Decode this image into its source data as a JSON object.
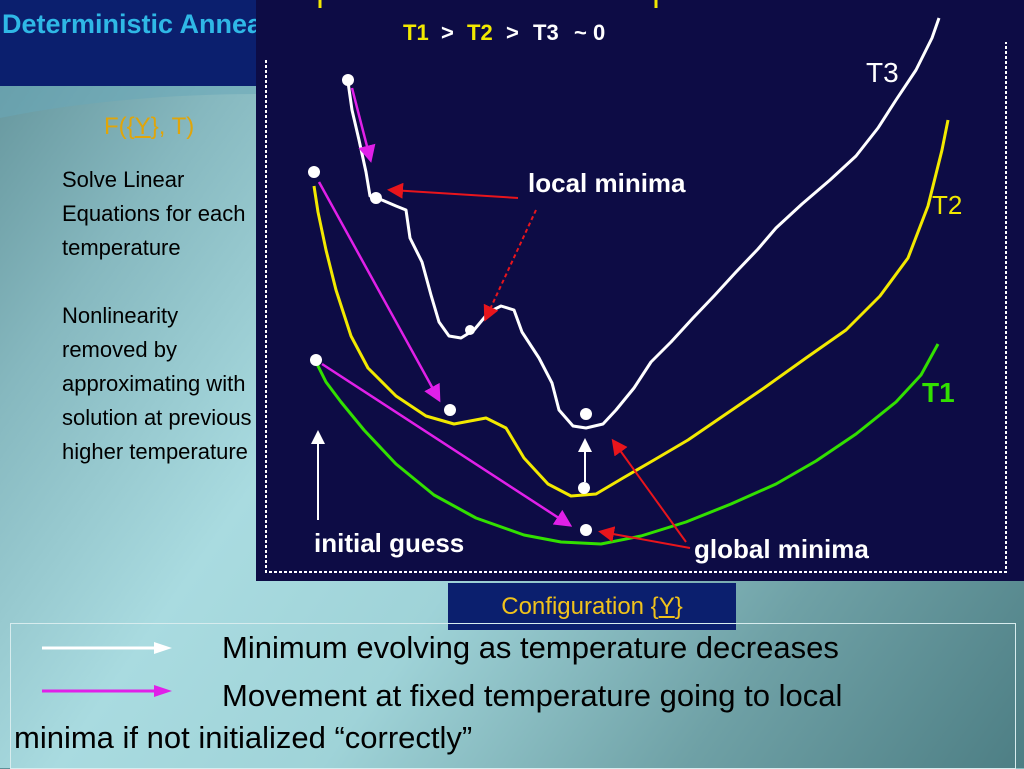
{
  "slide": {
    "title": "Deterministic Annealing",
    "formula": {
      "prefix": "F({",
      "var": "Y",
      "suffix": "}, T)"
    },
    "bullets": [
      "Solve Linear Equations for each temperature",
      "Nonlinearity removed by approximating with solution at previous higher temperature"
    ]
  },
  "figure": {
    "heading": {
      "t1": "T1",
      "t2": "T2",
      "t3": "T3",
      "gt": ">",
      "approx": "~ 0"
    },
    "curve_labels": {
      "t3": "T3",
      "t2": "T2",
      "t1": "T1"
    },
    "annotations": {
      "local_minima": "local minima",
      "initial_guess": "initial guess",
      "global_minima": "global minima"
    },
    "axis_label": {
      "prefix": "Configuration {",
      "var": "Y",
      "suffix": "}"
    }
  },
  "legend": {
    "white_arrow_text": "Minimum evolving as temperature decreases",
    "magenta_arrow_text_line1": "Movement at fixed temperature going to local",
    "magenta_arrow_text_line2": "minima if not initialized “correctly”"
  },
  "colors": {
    "background_panel": "#0d0c45",
    "title": "#2fb8e6",
    "t3_curve": "#ffffff",
    "t2_curve": "#f2e900",
    "t1_curve": "#32e000",
    "annotation_arrow": "#e8151c",
    "move_arrow": "#e020e8",
    "formula": "#e0a50a",
    "config_label": "#f1c21b"
  }
}
